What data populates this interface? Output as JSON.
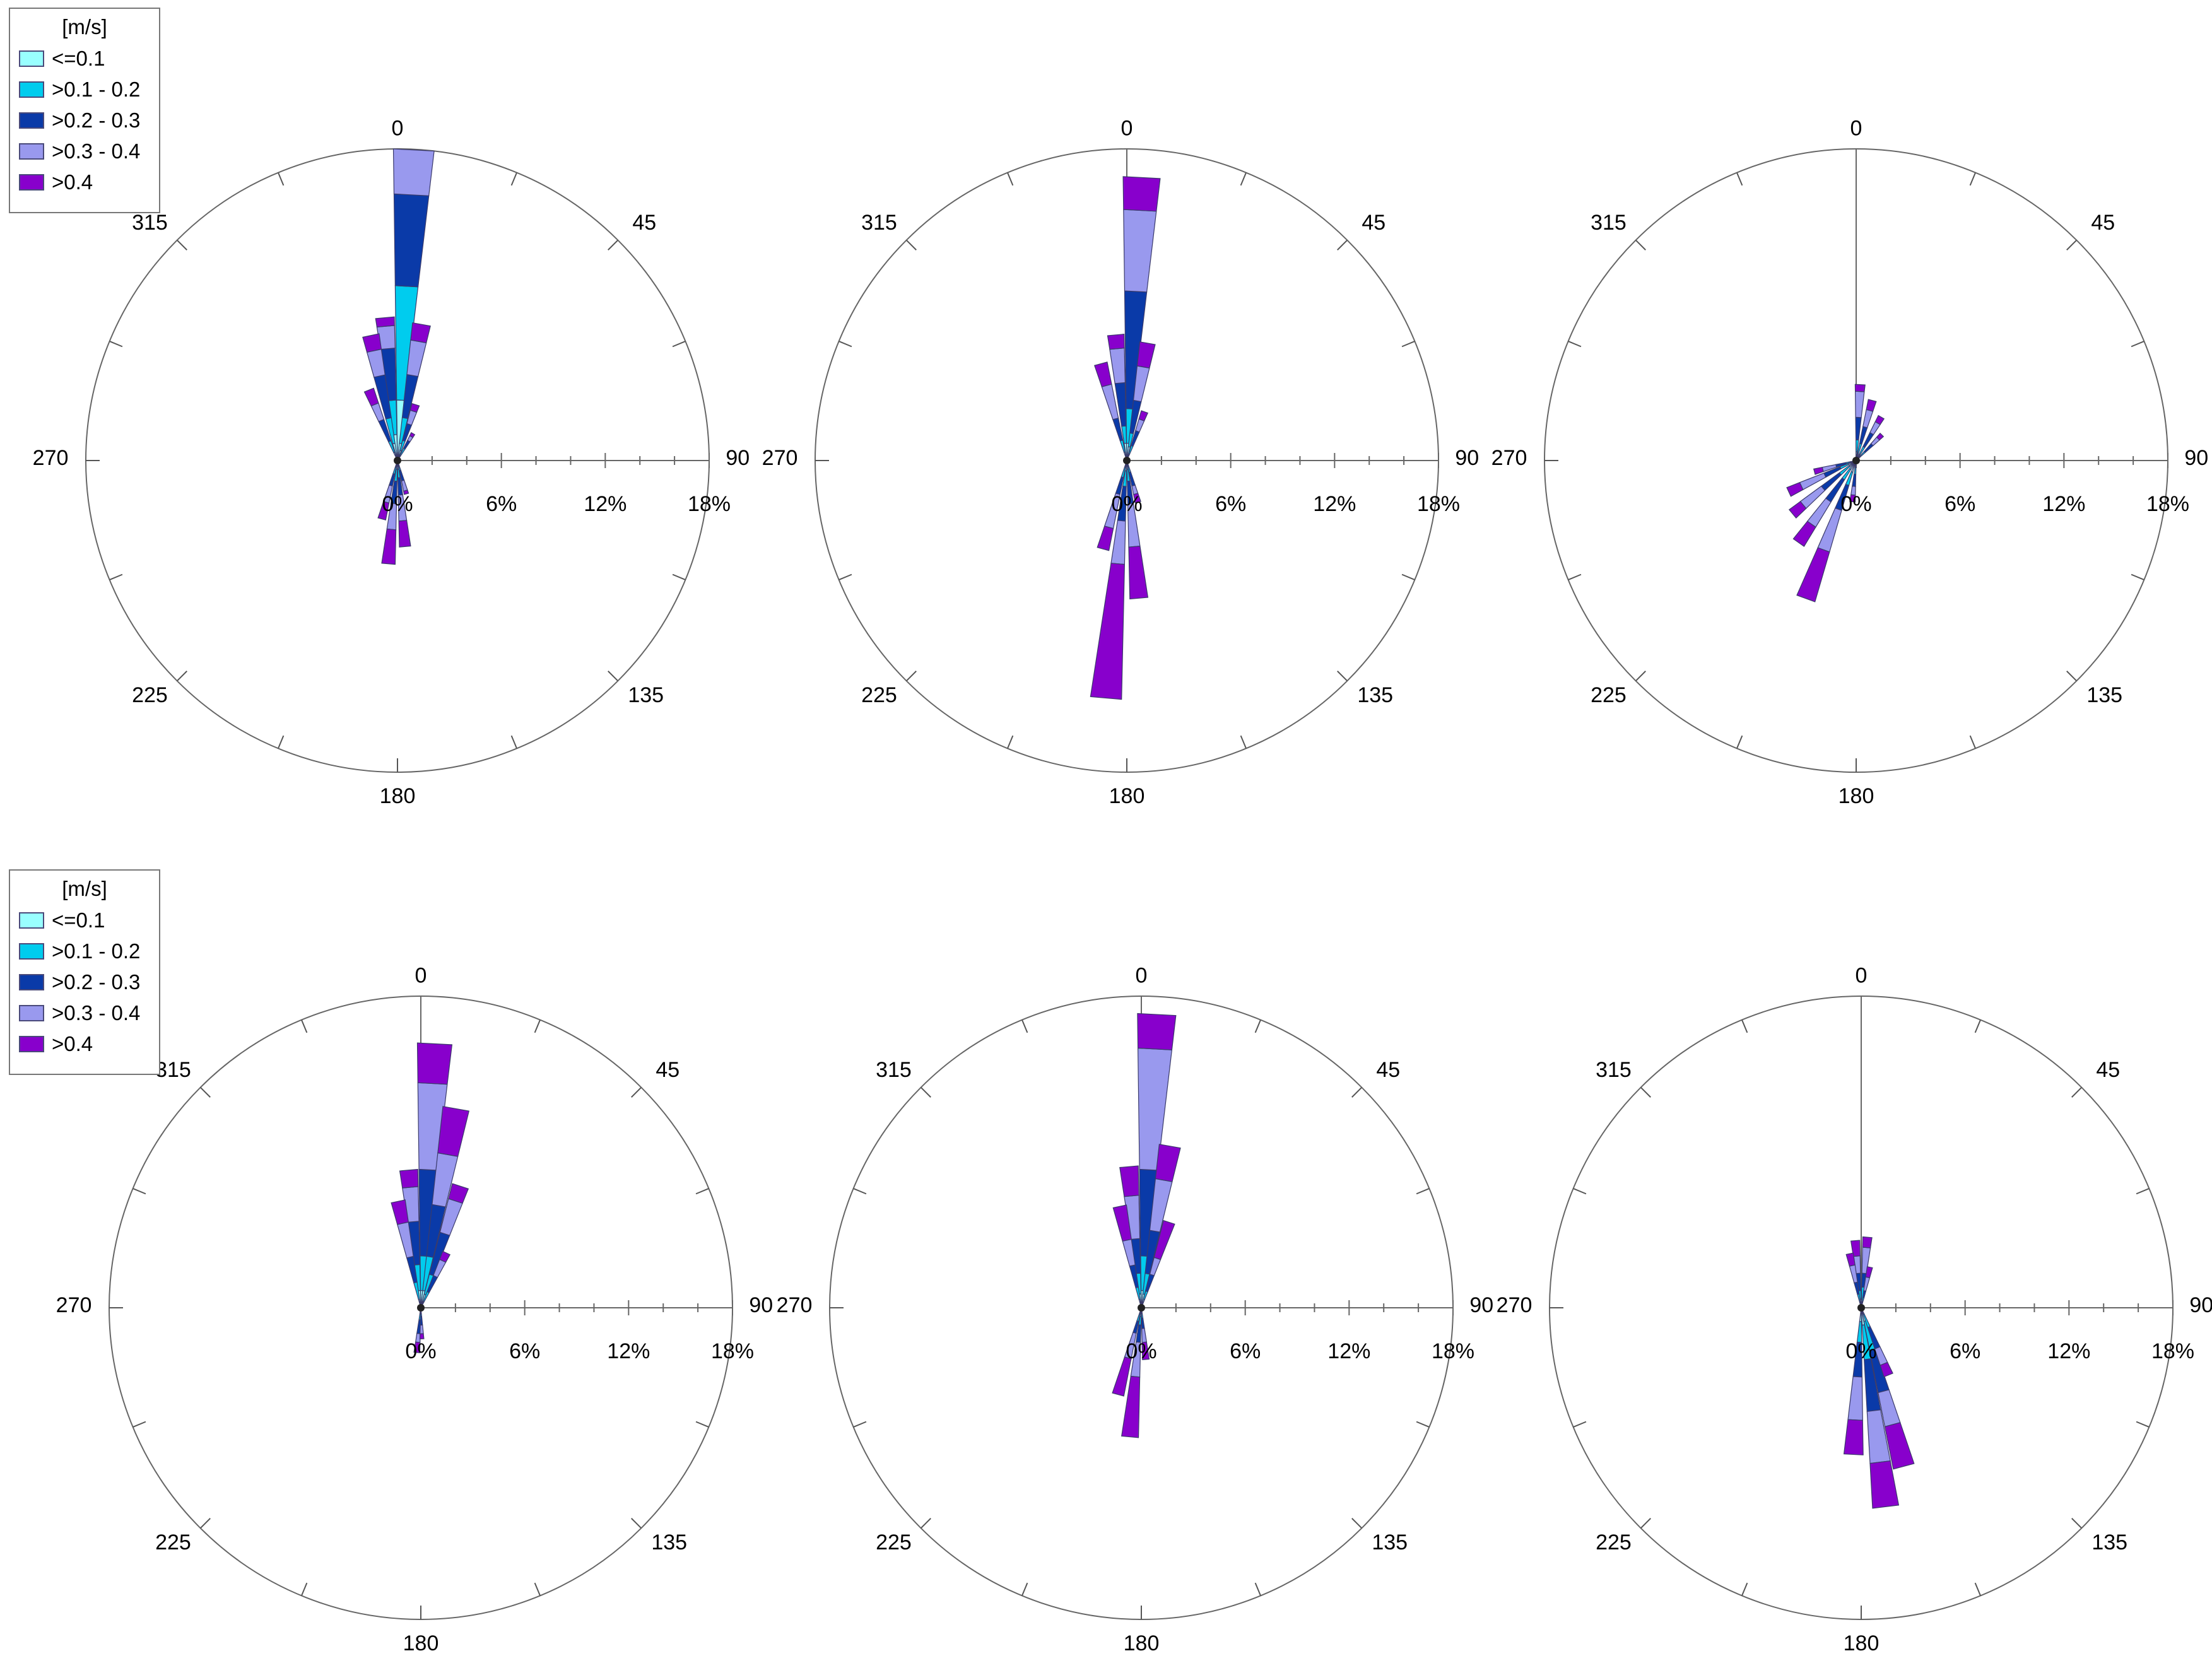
{
  "legend": {
    "title": "[m/s]",
    "bins": [
      {
        "label": "<=0.1",
        "color": "#99ffff"
      },
      {
        "label": ">0.1 - 0.2",
        "color": "#00ccee"
      },
      {
        "label": ">0.2 - 0.3",
        "color": "#0a3aa8"
      },
      {
        "label": ">0.3 - 0.4",
        "color": "#9999ee"
      },
      {
        "label": ">0.4",
        "color": "#8800cc"
      }
    ]
  },
  "direction_labels": [
    "0",
    "45",
    "90",
    "135",
    "180",
    "225",
    "270",
    "315"
  ],
  "radial_tick_labels": [
    "0%",
    "6%",
    "12%",
    "18%"
  ],
  "chart_data": [
    {
      "type": "polar-stacked-bar",
      "rlim": [
        0,
        18
      ],
      "sector_width_deg": 7.5,
      "petals": [
        {
          "dir": 3,
          "cum": [
            3.5,
            10.1,
            15.4,
            18.0,
            18.0
          ]
        },
        {
          "dir": 355,
          "cum": [
            1.5,
            3.5,
            6.5,
            7.8,
            8.3
          ]
        },
        {
          "dir": 348,
          "cum": [
            1.0,
            2.5,
            5.0,
            6.5,
            7.4
          ]
        },
        {
          "dir": 10,
          "cum": [
            1.0,
            2.5,
            5.0,
            7.0,
            8.0
          ]
        },
        {
          "dir": 18,
          "cum": [
            0.6,
            1.2,
            2.2,
            3.0,
            3.4
          ]
        },
        {
          "dir": 338,
          "cum": [
            0.5,
            1.2,
            2.5,
            3.5,
            4.4
          ]
        },
        {
          "dir": 30,
          "cum": [
            0.3,
            0.8,
            1.3,
            1.6,
            1.8
          ]
        },
        {
          "dir": 185,
          "cum": [
            0.5,
            1.2,
            2.5,
            4.0,
            6.0
          ]
        },
        {
          "dir": 175,
          "cum": [
            0.5,
            1.0,
            2.0,
            3.5,
            5.0
          ]
        },
        {
          "dir": 195,
          "cum": [
            0.4,
            0.8,
            1.5,
            2.5,
            3.5
          ]
        },
        {
          "dir": 165,
          "cum": [
            0.3,
            0.6,
            1.2,
            1.8,
            2.0
          ]
        }
      ]
    },
    {
      "type": "polar-stacked-bar",
      "rlim": [
        0,
        18
      ],
      "sector_width_deg": 7.5,
      "petals": [
        {
          "dir": 3,
          "cum": [
            1.0,
            3.0,
            9.8,
            14.5,
            16.4
          ]
        },
        {
          "dir": 355,
          "cum": [
            1.0,
            2.0,
            4.5,
            6.5,
            7.3
          ]
        },
        {
          "dir": 10,
          "cum": [
            0.8,
            1.6,
            3.5,
            5.5,
            6.9
          ]
        },
        {
          "dir": 345,
          "cum": [
            0.5,
            1.2,
            2.5,
            4.5,
            5.8
          ]
        },
        {
          "dir": 20,
          "cum": [
            0.4,
            0.9,
            1.8,
            2.5,
            3.0
          ]
        },
        {
          "dir": 185,
          "cum": [
            0.6,
            1.5,
            3.5,
            6.0,
            13.8
          ]
        },
        {
          "dir": 175,
          "cum": [
            0.5,
            1.2,
            2.5,
            5.0,
            8.0
          ]
        },
        {
          "dir": 195,
          "cum": [
            0.4,
            1.0,
            2.0,
            4.0,
            5.3
          ]
        },
        {
          "dir": 165,
          "cum": [
            0.3,
            0.7,
            1.5,
            2.0,
            2.5
          ]
        }
      ]
    },
    {
      "type": "polar-stacked-bar",
      "rlim": [
        0,
        18
      ],
      "sector_width_deg": 7.5,
      "petals": [
        {
          "dir": 3,
          "cum": [
            0.5,
            1.2,
            2.5,
            4.0,
            4.4
          ]
        },
        {
          "dir": 15,
          "cum": [
            0.4,
            1.0,
            2.0,
            3.0,
            3.6
          ]
        },
        {
          "dir": 30,
          "cum": [
            0.4,
            0.9,
            1.8,
            2.5,
            2.9
          ]
        },
        {
          "dir": 45,
          "cum": [
            0.3,
            0.7,
            1.3,
            1.8,
            2.1
          ]
        },
        {
          "dir": 200,
          "cum": [
            0.7,
            1.5,
            3.0,
            5.5,
            8.5
          ]
        },
        {
          "dir": 215,
          "cum": [
            0.6,
            1.3,
            2.8,
            4.5,
            5.8
          ]
        },
        {
          "dir": 230,
          "cum": [
            0.5,
            1.2,
            2.5,
            4.0,
            4.8
          ]
        },
        {
          "dir": 245,
          "cum": [
            0.5,
            1.0,
            2.0,
            3.5,
            4.3
          ]
        },
        {
          "dir": 255,
          "cum": [
            0.3,
            0.6,
            1.2,
            2.0,
            2.5
          ]
        },
        {
          "dir": 185,
          "cum": [
            0.4,
            0.8,
            1.5,
            2.0,
            2.4
          ]
        }
      ]
    },
    {
      "type": "polar-stacked-bar",
      "rlim": [
        0,
        18
      ],
      "sector_width_deg": 7.5,
      "petals": [
        {
          "dir": 3,
          "cum": [
            1.0,
            3.0,
            8.0,
            13.0,
            15.3
          ]
        },
        {
          "dir": 10,
          "cum": [
            1.0,
            3.0,
            6.0,
            9.0,
            11.7
          ]
        },
        {
          "dir": 18,
          "cum": [
            0.8,
            2.0,
            4.5,
            6.5,
            7.4
          ]
        },
        {
          "dir": 355,
          "cum": [
            1.0,
            2.5,
            5.0,
            7.0,
            8.0
          ]
        },
        {
          "dir": 348,
          "cum": [
            0.5,
            1.5,
            3.0,
            5.0,
            6.3
          ]
        },
        {
          "dir": 25,
          "cum": [
            0.4,
            1.0,
            2.0,
            3.0,
            3.5
          ]
        },
        {
          "dir": 185,
          "cum": [
            0.3,
            0.7,
            1.5,
            2.0,
            2.6
          ]
        },
        {
          "dir": 178,
          "cum": [
            0.3,
            0.5,
            1.0,
            1.5,
            1.8
          ]
        }
      ]
    },
    {
      "type": "polar-stacked-bar",
      "rlim": [
        0,
        18
      ],
      "sector_width_deg": 7.5,
      "petals": [
        {
          "dir": 3,
          "cum": [
            1.0,
            3.0,
            8.0,
            15.0,
            17.0
          ]
        },
        {
          "dir": 10,
          "cum": [
            0.8,
            2.0,
            4.5,
            7.5,
            9.5
          ]
        },
        {
          "dir": 355,
          "cum": [
            0.8,
            2.0,
            4.0,
            6.5,
            8.2
          ]
        },
        {
          "dir": 348,
          "cum": [
            0.5,
            1.2,
            2.5,
            4.0,
            6.0
          ]
        },
        {
          "dir": 18,
          "cum": [
            0.5,
            1.0,
            2.0,
            3.0,
            5.2
          ]
        },
        {
          "dir": 185,
          "cum": [
            0.5,
            1.0,
            2.0,
            4.0,
            7.5
          ]
        },
        {
          "dir": 195,
          "cum": [
            0.3,
            0.8,
            1.5,
            3.0,
            5.2
          ]
        },
        {
          "dir": 175,
          "cum": [
            0.3,
            0.6,
            1.2,
            2.0,
            3.0
          ]
        }
      ]
    },
    {
      "type": "polar-stacked-bar",
      "rlim": [
        0,
        18
      ],
      "sector_width_deg": 7.5,
      "petals": [
        {
          "dir": 173,
          "cum": [
            1.0,
            3.0,
            6.0,
            9.0,
            11.6
          ]
        },
        {
          "dir": 165,
          "cum": [
            0.8,
            2.5,
            5.0,
            7.0,
            9.5
          ]
        },
        {
          "dir": 183,
          "cum": [
            0.8,
            2.0,
            4.0,
            6.5,
            8.5
          ]
        },
        {
          "dir": 158,
          "cum": [
            0.4,
            1.2,
            2.5,
            3.5,
            4.2
          ]
        },
        {
          "dir": 5,
          "cum": [
            0.5,
            1.2,
            2.0,
            3.5,
            4.1
          ]
        },
        {
          "dir": 355,
          "cum": [
            0.5,
            1.0,
            2.0,
            3.0,
            3.9
          ]
        },
        {
          "dir": 348,
          "cum": [
            0.3,
            0.8,
            1.5,
            2.5,
            3.2
          ]
        },
        {
          "dir": 12,
          "cum": [
            0.3,
            0.6,
            1.0,
            1.8,
            2.4
          ]
        }
      ]
    }
  ]
}
